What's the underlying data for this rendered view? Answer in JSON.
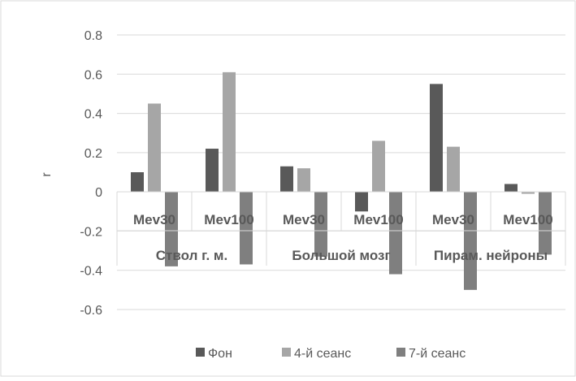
{
  "chart_data": {
    "type": "bar",
    "ylabel": "r",
    "ylim": [
      -0.6,
      0.8
    ],
    "yticks": [
      "0.8",
      "0.6",
      "0.4",
      "0.2",
      "0",
      "-0.2",
      "-0.4",
      "-0.6"
    ],
    "ytick_values": [
      0.8,
      0.6,
      0.4,
      0.2,
      0,
      -0.2,
      -0.4,
      -0.6
    ],
    "grid": true,
    "legend": "bottom",
    "groups": [
      "Ствол г. м.",
      "Большой мозг",
      "Пирам. нейроны"
    ],
    "categories": [
      "Mev30",
      "Mev100",
      "Mev30",
      "Mev100",
      "Mev30",
      "Mev100"
    ],
    "series": [
      {
        "name": "Фон",
        "color": "#595959",
        "values": [
          0.1,
          0.22,
          0.13,
          -0.1,
          0.55,
          0.04
        ]
      },
      {
        "name": "4-й сеанс",
        "color": "#a6a6a6",
        "values": [
          0.45,
          0.61,
          0.12,
          0.26,
          0.23,
          -0.01
        ]
      },
      {
        "name": "7-й сеанс",
        "color": "#7f7f7f",
        "values": [
          -0.38,
          -0.37,
          -0.33,
          -0.42,
          -0.5,
          -0.32
        ]
      }
    ]
  }
}
